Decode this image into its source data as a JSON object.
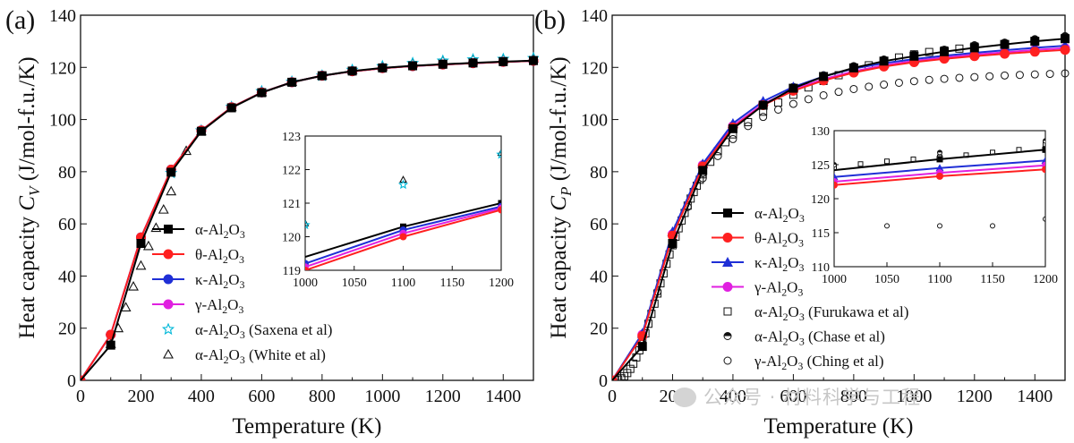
{
  "chart_data": [
    {
      "panel_label": "(a)",
      "type": "line",
      "xlabel": "Temperature (K)",
      "ylabel": {
        "prefix": "Heat capacity ",
        "symbol": "C",
        "sub": "V",
        "units": " (J/mol-f.u./K)"
      },
      "xlim": [
        0,
        1500
      ],
      "ylim": [
        0,
        140
      ],
      "xticks": [
        0,
        200,
        400,
        600,
        800,
        1000,
        1200,
        1400
      ],
      "yticks": [
        0,
        20,
        40,
        60,
        80,
        100,
        120,
        140
      ],
      "series": [
        {
          "name": "α-Al2O3",
          "color": "#000000",
          "marker": "square",
          "x": [
            0,
            100,
            200,
            300,
            400,
            500,
            600,
            700,
            800,
            900,
            1000,
            1100,
            1200,
            1300,
            1400,
            1500
          ],
          "y": [
            0,
            13.5,
            52.5,
            79.8,
            95.5,
            104.5,
            110.3,
            114.3,
            116.8,
            118.6,
            119.8,
            120.6,
            121.2,
            121.7,
            122.2,
            122.6
          ]
        },
        {
          "name": "θ-Al2O3",
          "color": "#ff2020",
          "marker": "circle",
          "x": [
            0,
            100,
            200,
            300,
            400,
            500,
            600,
            700,
            800,
            900,
            1000,
            1100,
            1200,
            1300,
            1400,
            1500
          ],
          "y": [
            0,
            17.5,
            54.8,
            80.8,
            95.8,
            104.7,
            110.4,
            114.3,
            116.8,
            118.5,
            119.7,
            120.5,
            121.1,
            121.6,
            122.1,
            122.5
          ]
        },
        {
          "name": "κ-Al2O3",
          "color": "#1f2fd6",
          "marker": "circle",
          "x": [
            0,
            100,
            200,
            300,
            400,
            500,
            600,
            700,
            800,
            900,
            1000,
            1100,
            1200,
            1300,
            1400,
            1500
          ],
          "y": [
            0,
            17.5,
            54.8,
            80.8,
            95.8,
            104.7,
            110.4,
            114.3,
            116.8,
            118.5,
            119.7,
            120.5,
            121.1,
            121.6,
            122.1,
            122.5
          ]
        },
        {
          "name": "γ-Al2O3",
          "color": "#e020e0",
          "marker": "circle",
          "x": [
            0,
            100,
            200,
            300,
            400,
            500,
            600,
            700,
            800,
            900,
            1000,
            1100,
            1200,
            1300,
            1400,
            1500
          ],
          "y": [
            0,
            17.5,
            54.8,
            80.8,
            95.8,
            104.7,
            110.4,
            114.3,
            116.8,
            118.5,
            119.7,
            120.5,
            121.1,
            121.6,
            122.1,
            122.5
          ]
        },
        {
          "name": "α-Al2O3 (Saxena et al)",
          "color": "#00b8d8",
          "marker": "star",
          "line": false,
          "x": [
            300,
            400,
            500,
            600,
            700,
            800,
            900,
            1000,
            1100,
            1200,
            1300,
            1400,
            1500
          ],
          "y": [
            79.5,
            95.8,
            104.8,
            110.8,
            114.5,
            116.8,
            119.0,
            120.4,
            121.6,
            122.5,
            123.0,
            123.2,
            123.5
          ]
        },
        {
          "name": "α-Al2O3 (White et al)",
          "color": "#111111",
          "marker": "triangle-open",
          "line": false,
          "x": [
            100,
            125,
            150,
            175,
            200,
            225,
            250,
            275,
            300,
            350,
            400,
            500,
            600,
            700,
            800,
            900,
            1000,
            1100,
            1200,
            1300,
            1400,
            1500
          ],
          "y": [
            14.0,
            20.0,
            28.0,
            36.0,
            44.0,
            51.5,
            58.5,
            65.5,
            72.5,
            88.0,
            95.5,
            104.8,
            110.5,
            114.5,
            117.0,
            119.0,
            120.4,
            121.6,
            122.5,
            123.0,
            123.2,
            123.5
          ]
        }
      ],
      "inset": {
        "xlim": [
          1000,
          1200
        ],
        "ylim": [
          119,
          123
        ],
        "xticks": [
          1000,
          1050,
          1100,
          1150,
          1200
        ],
        "yticks": [
          119,
          120,
          121,
          122,
          123
        ],
        "series": [
          {
            "color": "#000000",
            "x": [
              1000,
              1100,
              1200
            ],
            "y": [
              119.4,
              120.3,
              121.0
            ],
            "marker": "square"
          },
          {
            "color": "#1f2fd6",
            "x": [
              1000,
              1100,
              1200
            ],
            "y": [
              119.2,
              120.2,
              120.9
            ],
            "marker": "circle"
          },
          {
            "color": "#e020e0",
            "x": [
              1000,
              1100,
              1200
            ],
            "y": [
              119.1,
              120.1,
              120.85
            ],
            "marker": "circle"
          },
          {
            "color": "#ff2020",
            "x": [
              1000,
              1100,
              1200
            ],
            "y": [
              119.0,
              120.0,
              120.8
            ],
            "marker": "circle"
          },
          {
            "color": "#111111",
            "x": [
              1000,
              1100,
              1200
            ],
            "y": [
              120.4,
              121.7,
              122.5
            ],
            "marker": "triangle-open",
            "line": false
          },
          {
            "color": "#00b8d8",
            "x": [
              1000,
              1100,
              1200
            ],
            "y": [
              120.35,
              121.55,
              122.45
            ],
            "marker": "star",
            "line": false
          }
        ]
      }
    },
    {
      "panel_label": "(b)",
      "type": "line",
      "xlabel": "Temperature (K)",
      "ylabel": {
        "prefix": "Heat capacity ",
        "symbol": "C",
        "sub": "P",
        "units": " (J/mol-f.u./K)"
      },
      "xlim": [
        0,
        1500
      ],
      "ylim": [
        0,
        140
      ],
      "xticks": [
        0,
        200,
        400,
        600,
        800,
        1000,
        1200,
        1400
      ],
      "yticks": [
        0,
        20,
        40,
        60,
        80,
        100,
        120,
        140
      ],
      "series": [
        {
          "name": "α-Al2O3",
          "color": "#000000",
          "marker": "square",
          "x": [
            0,
            100,
            200,
            300,
            400,
            500,
            600,
            700,
            800,
            900,
            1000,
            1100,
            1200,
            1300,
            1400,
            1500
          ],
          "y": [
            0,
            13.0,
            52.5,
            80.5,
            96.5,
            105.5,
            112.0,
            116.5,
            119.8,
            122.4,
            124.3,
            126.0,
            127.5,
            128.8,
            130.0,
            131.0
          ]
        },
        {
          "name": "θ-Al2O3",
          "color": "#ff2020",
          "marker": "circle",
          "x": [
            0,
            100,
            200,
            300,
            400,
            500,
            600,
            700,
            800,
            900,
            1000,
            1100,
            1200,
            1300,
            1400,
            1500
          ],
          "y": [
            0,
            17.0,
            55.5,
            82.0,
            97.0,
            105.5,
            111.0,
            115.0,
            118.0,
            120.3,
            122.0,
            123.3,
            124.3,
            125.2,
            126.0,
            126.7
          ]
        },
        {
          "name": "κ-Al2O3",
          "color": "#1f2fd6",
          "marker": "triangle",
          "x": [
            0,
            100,
            200,
            300,
            400,
            500,
            600,
            700,
            800,
            900,
            1000,
            1100,
            1200,
            1300,
            1400,
            1500
          ],
          "y": [
            0,
            18.0,
            57.0,
            83.0,
            98.5,
            107.0,
            112.5,
            116.5,
            119.5,
            121.6,
            123.2,
            124.5,
            125.6,
            126.6,
            127.5,
            128.3
          ]
        },
        {
          "name": "γ-Al2O3",
          "color": "#e020e0",
          "marker": "circle",
          "x": [
            0,
            100,
            200,
            300,
            400,
            500,
            600,
            700,
            800,
            900,
            1000,
            1100,
            1200,
            1300,
            1400,
            1500
          ],
          "y": [
            0,
            17.5,
            56.0,
            82.5,
            97.5,
            106.0,
            111.5,
            115.5,
            118.5,
            120.8,
            122.5,
            123.8,
            124.9,
            125.8,
            126.7,
            127.4
          ]
        },
        {
          "name": "α-Al2O3 (Furukawa et al)",
          "color": "#111111",
          "marker": "square-open",
          "line": false,
          "x": [
            10,
            20,
            30,
            40,
            50,
            60,
            70,
            80,
            90,
            100,
            110,
            120,
            130,
            140,
            150,
            160,
            170,
            180,
            190,
            200,
            210,
            220,
            230,
            240,
            250,
            260,
            270,
            280,
            290,
            300,
            325,
            350,
            375,
            400,
            450,
            500,
            550,
            600,
            650,
            700,
            750,
            800,
            850,
            900,
            950,
            1000,
            1050,
            1100,
            1150,
            1200
          ],
          "y": [
            0.1,
            0.3,
            0.8,
            1.6,
            2.8,
            4.4,
            6.4,
            8.8,
            11.5,
            14.5,
            18.0,
            21.7,
            25.5,
            29.4,
            33.3,
            37.2,
            41.0,
            44.7,
            48.3,
            51.8,
            55.1,
            58.3,
            61.3,
            64.2,
            67.0,
            69.7,
            72.2,
            74.6,
            76.9,
            79.0,
            83.8,
            87.9,
            91.3,
            94.3,
            99.0,
            103.0,
            106.5,
            109.5,
            112.3,
            114.8,
            117.0,
            119.0,
            120.8,
            122.4,
            123.8,
            125.0,
            125.9,
            126.5,
            127.2,
            128.0
          ]
        },
        {
          "name": "α-Al2O3 (Chase et al)",
          "color": "#111111",
          "marker": "halfcircle",
          "line": false,
          "x": [
            300,
            400,
            500,
            600,
            700,
            800,
            900,
            1000,
            1100,
            1200,
            1300,
            1400,
            1500
          ],
          "y": [
            79.5,
            96.5,
            106.0,
            112.5,
            117.0,
            120.5,
            123.0,
            125.0,
            126.8,
            128.5,
            129.5,
            130.8,
            132.0
          ]
        },
        {
          "name": "γ-Al2O3 (Ching et al)",
          "color": "#111111",
          "marker": "circle-open",
          "line": false,
          "x": [
            100,
            150,
            200,
            250,
            300,
            350,
            400,
            450,
            500,
            550,
            600,
            650,
            700,
            750,
            800,
            850,
            900,
            950,
            1000,
            1050,
            1100,
            1150,
            1200,
            1250,
            1300,
            1350,
            1400,
            1450,
            1500
          ],
          "y": [
            14.0,
            34.0,
            52.0,
            66.5,
            77.5,
            86.0,
            92.5,
            97.5,
            101.0,
            103.8,
            106.0,
            107.8,
            109.3,
            110.6,
            111.7,
            112.6,
            113.4,
            114.1,
            114.7,
            115.2,
            115.6,
            116.0,
            116.3,
            116.6,
            116.9,
            117.1,
            117.3,
            117.5,
            117.7
          ]
        }
      ],
      "inset": {
        "xlim": [
          1000,
          1200
        ],
        "ylim": [
          110,
          130
        ],
        "xticks": [
          1000,
          1050,
          1100,
          1150,
          1200
        ],
        "yticks": [
          110,
          115,
          120,
          125,
          130
        ],
        "series": [
          {
            "color": "#000000",
            "x": [
              1000,
              1100,
              1200
            ],
            "y": [
              124.2,
              125.8,
              127.2
            ],
            "marker": "square"
          },
          {
            "color": "#1f2fd6",
            "x": [
              1000,
              1100,
              1200
            ],
            "y": [
              123.2,
              124.5,
              125.6
            ],
            "marker": "triangle"
          },
          {
            "color": "#e020e0",
            "x": [
              1000,
              1100,
              1200
            ],
            "y": [
              122.5,
              123.8,
              124.9
            ],
            "marker": "circle"
          },
          {
            "color": "#ff2020",
            "x": [
              1000,
              1100,
              1200
            ],
            "y": [
              122.0,
              123.3,
              124.3
            ],
            "marker": "circle"
          },
          {
            "color": "#111111",
            "x": [
              1000,
              1025,
              1050,
              1075,
              1100,
              1125,
              1150,
              1175,
              1200
            ],
            "y": [
              124.6,
              125.1,
              125.5,
              125.8,
              126.1,
              126.4,
              126.8,
              127.2,
              128.0
            ],
            "marker": "square-open",
            "line": false
          },
          {
            "color": "#111111",
            "x": [
              1000,
              1100,
              1200
            ],
            "y": [
              125.0,
              126.8,
              128.5
            ],
            "marker": "halfcircle",
            "line": false
          },
          {
            "color": "#111111",
            "x": [
              1050,
              1100,
              1150,
              1200
            ],
            "y": [
              116.0,
              116.0,
              116.0,
              117.0
            ],
            "marker": "circle-open",
            "line": false
          }
        ]
      }
    }
  ],
  "watermark": "公众号 · 材料科学与工程"
}
